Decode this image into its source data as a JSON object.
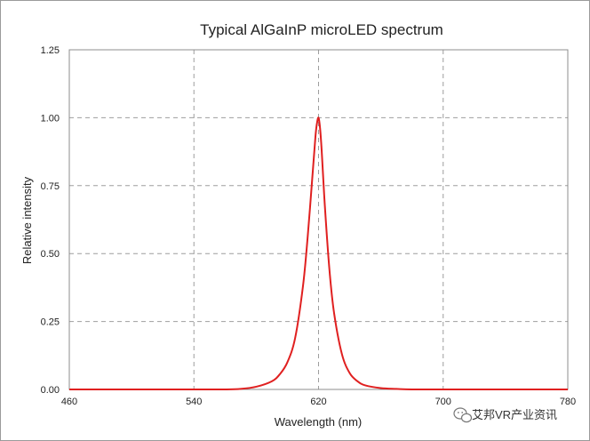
{
  "chart_data": {
    "type": "line",
    "title": "Typical AlGaInP microLED spectrum",
    "xlabel": "Wavelength (nm)",
    "ylabel": "Relative intensity",
    "xlim": [
      460,
      780
    ],
    "ylim": [
      0,
      1.25
    ],
    "xticks": [
      "460",
      "540",
      "620",
      "700",
      "780"
    ],
    "yticks": [
      "0.00",
      "0.25",
      "0.50",
      "0.75",
      "1.00",
      "1.25"
    ],
    "grid": true,
    "grid_style": "dashed",
    "legend": "none",
    "series": [
      {
        "color": "#e02020",
        "x": [
          460,
          540,
          560,
          570,
          580,
          590,
          595,
          600,
          605,
          610,
          613,
          616,
          618,
          619,
          620,
          621,
          622,
          624,
          627,
          630,
          635,
          640,
          645,
          650,
          660,
          670,
          680,
          700,
          740,
          780
        ],
        "y": [
          0.0,
          0.0,
          0.0,
          0.002,
          0.01,
          0.03,
          0.055,
          0.1,
          0.19,
          0.38,
          0.56,
          0.78,
          0.93,
          0.98,
          1.0,
          0.96,
          0.88,
          0.68,
          0.44,
          0.28,
          0.13,
          0.06,
          0.03,
          0.015,
          0.005,
          0.002,
          0.0,
          0.0,
          0.0,
          0.0
        ]
      }
    ]
  },
  "watermark": {
    "icon": "wechat-icon",
    "text": "艾邦VR产业资讯"
  }
}
